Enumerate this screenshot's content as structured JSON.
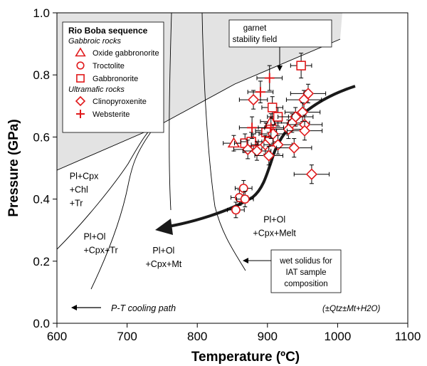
{
  "chart_data": {
    "type": "scatter",
    "xlabel": "Temperature (ºC)",
    "ylabel": "Pressure (GPa)",
    "xlim": [
      600,
      1100
    ],
    "ylim": [
      0.0,
      1.0
    ],
    "x_ticks": [
      "600",
      "700",
      "800",
      "900",
      "1000",
      "1100"
    ],
    "y_ticks": [
      "0.0",
      "0.2",
      "0.4",
      "0.6",
      "0.8",
      "1.0"
    ],
    "legend": {
      "title": "Rio Boba sequence",
      "placement": "top-left",
      "groups": [
        {
          "label": "Gabbroic rocks",
          "items": [
            {
              "label": "Oxide gabbronorite",
              "marker": "triangle"
            },
            {
              "label": "Troctolite",
              "marker": "circle"
            },
            {
              "label": "Gabbronorite",
              "marker": "square"
            }
          ]
        },
        {
          "label": "Ultramafic rocks",
          "items": [
            {
              "label": "Clinopyroxenite",
              "marker": "diamond"
            },
            {
              "label": "Websterite",
              "marker": "plus"
            }
          ]
        }
      ]
    },
    "marker_color": "#e0191b",
    "shaded_field_color": "#e3e3e3",
    "series": [
      {
        "name": "Oxide gabbronorite",
        "marker": "triangle",
        "points": [
          {
            "x": 852,
            "y": 0.58,
            "xerr": 15,
            "yerr": 0.025
          },
          {
            "x": 880,
            "y": 0.585,
            "xerr": 15,
            "yerr": 0.025
          },
          {
            "x": 898,
            "y": 0.62,
            "xerr": 15,
            "yerr": 0.025
          },
          {
            "x": 905,
            "y": 0.65,
            "xerr": 15,
            "yerr": 0.025
          }
        ]
      },
      {
        "name": "Troctolite",
        "marker": "circle",
        "points": [
          {
            "x": 855,
            "y": 0.365,
            "xerr": 12,
            "yerr": 0.025
          },
          {
            "x": 860,
            "y": 0.405,
            "xerr": 12,
            "yerr": 0.025
          },
          {
            "x": 866,
            "y": 0.435,
            "xerr": 12,
            "yerr": 0.025
          },
          {
            "x": 868,
            "y": 0.4,
            "xerr": 12,
            "yerr": 0.025
          }
        ]
      },
      {
        "name": "Gabbronorite",
        "marker": "square",
        "points": [
          {
            "x": 948,
            "y": 0.83,
            "xerr": 15,
            "yerr": 0.04
          },
          {
            "x": 907,
            "y": 0.695,
            "xerr": 15,
            "yerr": 0.035
          },
          {
            "x": 915,
            "y": 0.665,
            "xerr": 15,
            "yerr": 0.03
          },
          {
            "x": 868,
            "y": 0.58,
            "xerr": 15,
            "yerr": 0.03
          },
          {
            "x": 877,
            "y": 0.585,
            "xerr": 15,
            "yerr": 0.03
          },
          {
            "x": 898,
            "y": 0.615,
            "xerr": 15,
            "yerr": 0.03
          },
          {
            "x": 902,
            "y": 0.585,
            "xerr": 15,
            "yerr": 0.03
          }
        ]
      },
      {
        "name": "Clinopyroxenite",
        "marker": "diamond",
        "points": [
          {
            "x": 958,
            "y": 0.74,
            "xerr": 25,
            "yerr": 0.03
          },
          {
            "x": 952,
            "y": 0.72,
            "xerr": 25,
            "yerr": 0.03
          },
          {
            "x": 880,
            "y": 0.72,
            "xerr": 20,
            "yerr": 0.03
          },
          {
            "x": 950,
            "y": 0.68,
            "xerr": 25,
            "yerr": 0.03
          },
          {
            "x": 940,
            "y": 0.665,
            "xerr": 25,
            "yerr": 0.03
          },
          {
            "x": 935,
            "y": 0.645,
            "xerr": 25,
            "yerr": 0.03
          },
          {
            "x": 953,
            "y": 0.64,
            "xerr": 25,
            "yerr": 0.03
          },
          {
            "x": 930,
            "y": 0.625,
            "xerr": 25,
            "yerr": 0.03
          },
          {
            "x": 953,
            "y": 0.62,
            "xerr": 25,
            "yerr": 0.03
          },
          {
            "x": 908,
            "y": 0.61,
            "xerr": 20,
            "yerr": 0.03
          },
          {
            "x": 897,
            "y": 0.575,
            "xerr": 20,
            "yerr": 0.03
          },
          {
            "x": 915,
            "y": 0.575,
            "xerr": 20,
            "yerr": 0.03
          },
          {
            "x": 938,
            "y": 0.565,
            "xerr": 25,
            "yerr": 0.03
          },
          {
            "x": 872,
            "y": 0.56,
            "xerr": 20,
            "yerr": 0.03
          },
          {
            "x": 885,
            "y": 0.555,
            "xerr": 20,
            "yerr": 0.03
          },
          {
            "x": 902,
            "y": 0.54,
            "xerr": 20,
            "yerr": 0.03
          },
          {
            "x": 963,
            "y": 0.48,
            "xerr": 25,
            "yerr": 0.03
          }
        ]
      },
      {
        "name": "Websterite",
        "marker": "plus",
        "points": [
          {
            "x": 903,
            "y": 0.79,
            "xerr": 18,
            "yerr": 0.04
          },
          {
            "x": 890,
            "y": 0.745,
            "xerr": 18,
            "yerr": 0.035
          },
          {
            "x": 878,
            "y": 0.63,
            "xerr": 18,
            "yerr": 0.035
          },
          {
            "x": 905,
            "y": 0.63,
            "xerr": 18,
            "yerr": 0.035
          }
        ]
      }
    ],
    "field_labels": [
      {
        "lines": [
          "Pl+Cpx",
          "+Chl",
          "+Tr"
        ],
        "x": 618,
        "y": 0.465
      },
      {
        "lines": [
          "Pl+Ol",
          "+Cpx+Tr"
        ],
        "x": 638,
        "y": 0.27
      },
      {
        "lines": [
          "Pl+Ol",
          "+Cpx+Mt"
        ],
        "x": 752,
        "y": 0.225
      },
      {
        "lines": [
          "Pl+Ol",
          "+Cpx+Melt"
        ],
        "x": 910,
        "y": 0.325
      }
    ],
    "annotations": {
      "garnet_field": [
        "garnet",
        "stability field"
      ],
      "wet_solidus": [
        "wet solidus for",
        "IAT sample",
        "composition"
      ],
      "cooling_path": "P-T cooling path",
      "assemblage_note": "(±Qtz±Mt+H2O)"
    }
  }
}
